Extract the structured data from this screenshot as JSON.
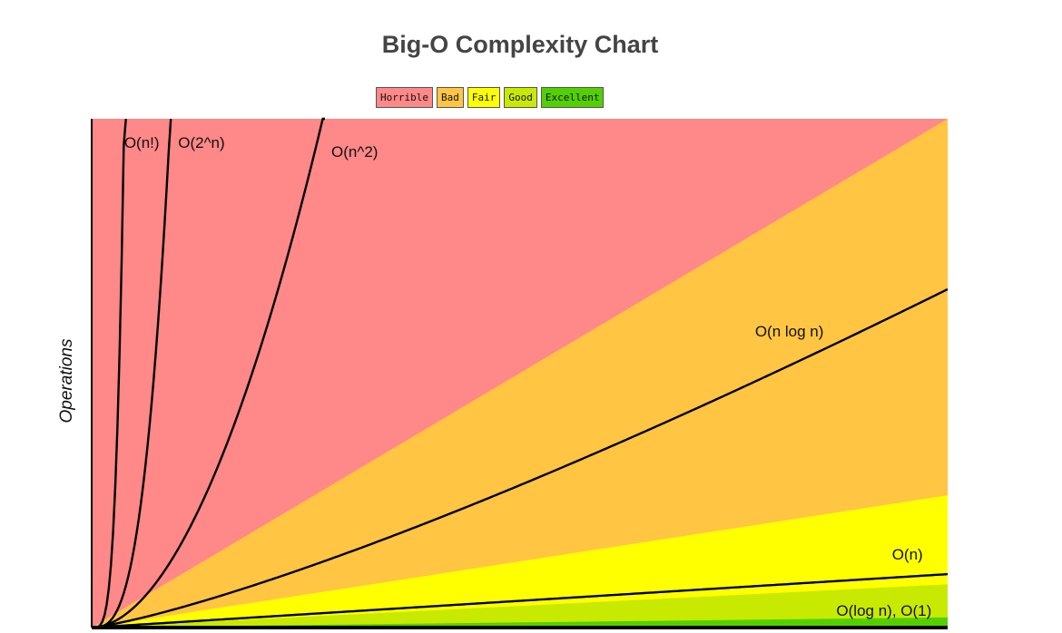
{
  "chart_data": {
    "type": "line",
    "title": "Big-O Complexity Chart",
    "xlabel": "",
    "ylabel": "Operations",
    "legend": [
      {
        "name": "Horrible",
        "color": "#ff8888"
      },
      {
        "name": "Bad",
        "color": "#ffc543"
      },
      {
        "name": "Fair",
        "color": "#ffff00"
      },
      {
        "name": "Good",
        "color": "#c8ea00"
      },
      {
        "name": "Excellent",
        "color": "#53d000"
      }
    ],
    "legend_position": "top-center",
    "xlim": [
      0,
      100
    ],
    "ylim": [
      0,
      1000
    ],
    "grid": false,
    "regions": [
      {
        "name": "Horrible",
        "color": "#ff8888",
        "upper_slope": null
      },
      {
        "name": "Bad",
        "color": "#ffc543",
        "upper_slope": 10
      },
      {
        "name": "Fair",
        "color": "#ffff00",
        "upper_slope": 2.6
      },
      {
        "name": "Good",
        "color": "#c8ea00",
        "upper_slope": 0.85
      },
      {
        "name": "Excellent",
        "color": "#53d000",
        "upper_slope": 0.2
      }
    ],
    "series": [
      {
        "name": "O(n!)",
        "function": "factorial",
        "label": "O(n!)"
      },
      {
        "name": "O(2^n)",
        "function": "exp2",
        "label": "O(2^n)"
      },
      {
        "name": "O(n^2)",
        "function": "square",
        "label": "O(n^2)"
      },
      {
        "name": "O(n log n)",
        "function": "nlogn",
        "label": "O(n log n)"
      },
      {
        "name": "O(n)",
        "function": "linear",
        "label": "O(n)"
      },
      {
        "name": "O(log n), O(1)",
        "function": "log_const",
        "label": "O(log n), O(1)"
      }
    ]
  }
}
